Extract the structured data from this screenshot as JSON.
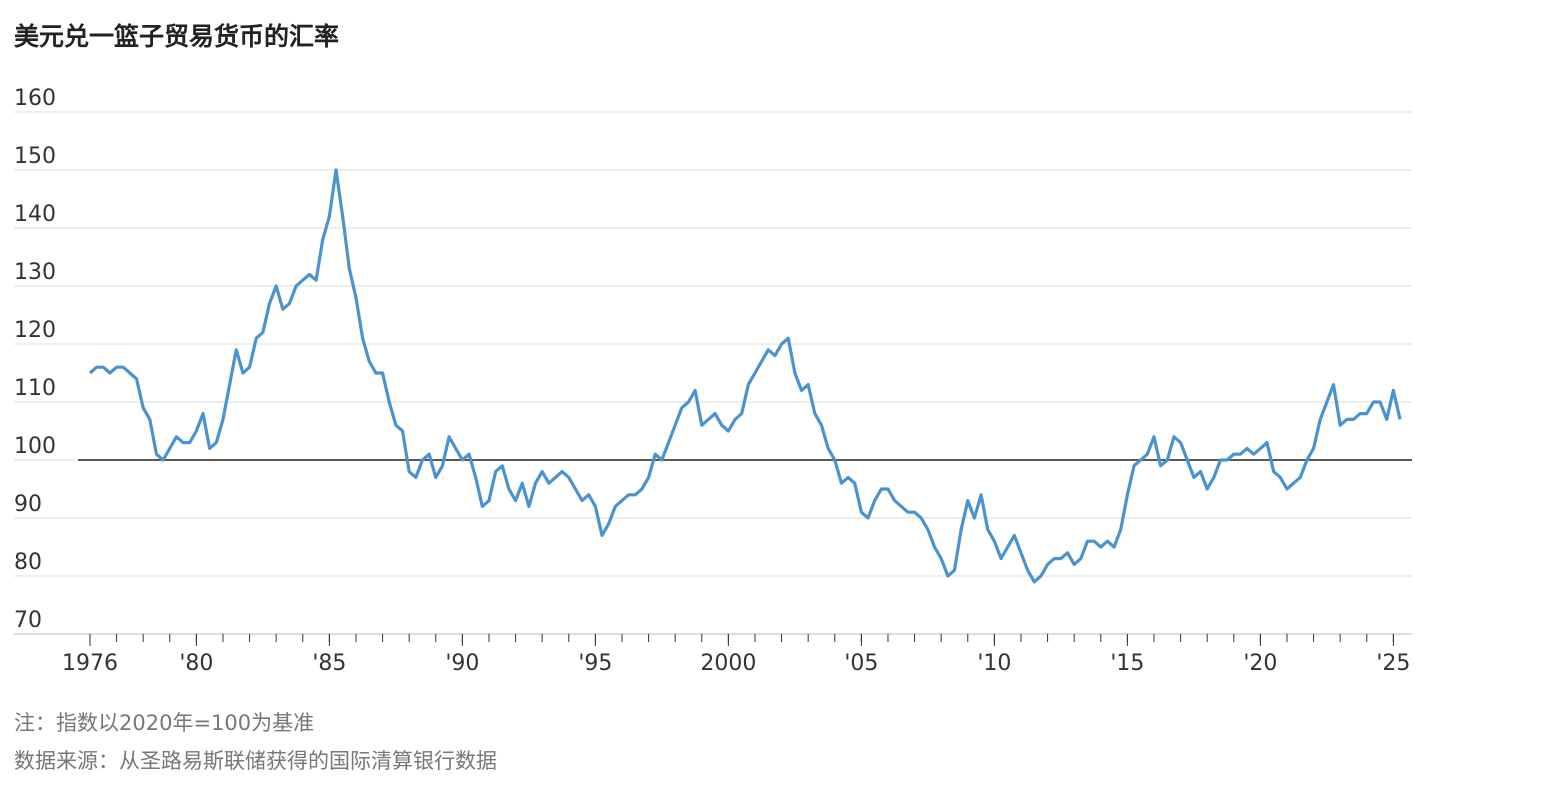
{
  "chart_data": {
    "type": "line",
    "title": "美元兑一篮子贸易货币的汇率",
    "note": "注：指数以2020年=100为基准",
    "source": "数据来源：从圣路易斯联储获得的国际清算银行数据",
    "reference_line": 100,
    "grid": true,
    "xlim": [
      1975.55,
      2025.7
    ],
    "ylim": [
      70,
      160
    ],
    "yticks": [
      70,
      80,
      90,
      100,
      110,
      120,
      130,
      140,
      150,
      160
    ],
    "xticks": [
      1976,
      {
        "value": 1980,
        "label": "'80"
      },
      {
        "value": 1985,
        "label": "'85"
      },
      {
        "value": 1990,
        "label": "'90"
      },
      {
        "value": 1995,
        "label": "'95"
      },
      2000,
      {
        "value": 2005,
        "label": "'05"
      },
      {
        "value": 2010,
        "label": "'10"
      },
      {
        "value": 2015,
        "label": "'15"
      },
      {
        "value": 2020,
        "label": "'20"
      },
      {
        "value": 2025,
        "label": "'25"
      }
    ],
    "xminorticks": [
      1976,
      1977,
      1978,
      1979,
      1980,
      1981,
      1982,
      1983,
      1984,
      1985,
      1986,
      1987,
      1988,
      1989,
      1990,
      1991,
      1992,
      1993,
      1994,
      1995,
      1996,
      1997,
      1998,
      1999,
      2000,
      2001,
      2002,
      2003,
      2004,
      2005,
      2006,
      2007,
      2008,
      2009,
      2010,
      2011,
      2012,
      2013,
      2014,
      2015,
      2016,
      2017,
      2018,
      2019,
      2020,
      2021,
      2022,
      2023,
      2024,
      2025
    ],
    "x": [
      1976,
      1976.25,
      1976.5,
      1976.75,
      1977,
      1977.25,
      1977.5,
      1977.75,
      1978,
      1978.25,
      1978.5,
      1978.75,
      1979,
      1979.25,
      1979.5,
      1979.75,
      1980,
      1980.25,
      1980.5,
      1980.75,
      1981,
      1981.25,
      1981.5,
      1981.75,
      1982,
      1982.25,
      1982.5,
      1982.75,
      1983,
      1983.25,
      1983.5,
      1983.75,
      1984,
      1984.25,
      1984.5,
      1984.75,
      1985,
      1985.25,
      1985.5,
      1985.75,
      1986,
      1986.25,
      1986.5,
      1986.75,
      1987,
      1987.25,
      1987.5,
      1987.75,
      1988,
      1988.25,
      1988.5,
      1988.75,
      1989,
      1989.25,
      1989.5,
      1989.75,
      1990,
      1990.25,
      1990.5,
      1990.75,
      1991,
      1991.25,
      1991.5,
      1991.75,
      1992,
      1992.25,
      1992.5,
      1992.75,
      1993,
      1993.25,
      1993.5,
      1993.75,
      1994,
      1994.25,
      1994.5,
      1994.75,
      1995,
      1995.25,
      1995.5,
      1995.75,
      1996,
      1996.25,
      1996.5,
      1996.75,
      1997,
      1997.25,
      1997.5,
      1997.75,
      1998,
      1998.25,
      1998.5,
      1998.75,
      1999,
      1999.25,
      1999.5,
      1999.75,
      2000,
      2000.25,
      2000.5,
      2000.75,
      2001,
      2001.25,
      2001.5,
      2001.75,
      2002,
      2002.25,
      2002.5,
      2002.75,
      2003,
      2003.25,
      2003.5,
      2003.75,
      2004,
      2004.25,
      2004.5,
      2004.75,
      2005,
      2005.25,
      2005.5,
      2005.75,
      2006,
      2006.25,
      2006.5,
      2006.75,
      2007,
      2007.25,
      2007.5,
      2007.75,
      2008,
      2008.25,
      2008.5,
      2008.75,
      2009,
      2009.25,
      2009.5,
      2009.75,
      2010,
      2010.25,
      2010.5,
      2010.75,
      2011,
      2011.25,
      2011.5,
      2011.75,
      2012,
      2012.25,
      2012.5,
      2012.75,
      2013,
      2013.25,
      2013.5,
      2013.75,
      2014,
      2014.25,
      2014.5,
      2014.75,
      2015,
      2015.25,
      2015.5,
      2015.75,
      2016,
      2016.25,
      2016.5,
      2016.75,
      2017,
      2017.25,
      2017.5,
      2017.75,
      2018,
      2018.25,
      2018.5,
      2018.75,
      2019,
      2019.25,
      2019.5,
      2019.75,
      2020,
      2020.25,
      2020.5,
      2020.75,
      2021,
      2021.25,
      2021.5,
      2021.75,
      2022,
      2022.25,
      2022.5,
      2022.75,
      2023,
      2023.25,
      2023.5,
      2023.75,
      2024,
      2024.25,
      2024.5,
      2024.75,
      2025,
      2025.25
    ],
    "series": [
      {
        "color": "#4a93cf",
        "values": [
          115,
          116,
          116,
          115,
          116,
          116,
          115,
          114,
          109,
          107,
          101,
          100,
          102,
          104,
          103,
          103,
          105,
          108,
          102,
          103,
          107,
          113,
          119,
          115,
          116,
          121,
          122,
          127,
          130,
          126,
          127,
          130,
          131,
          132,
          131,
          138,
          142,
          150,
          142,
          133,
          128,
          121,
          117,
          115,
          115,
          110,
          106,
          105,
          98,
          97,
          100,
          101,
          97,
          99,
          104,
          102,
          100,
          101,
          97,
          92,
          93,
          98,
          99,
          95,
          93,
          96,
          92,
          96,
          98,
          96,
          97,
          98,
          97,
          95,
          93,
          94,
          92,
          87,
          89,
          92,
          93,
          94,
          94,
          95,
          97,
          101,
          100,
          103,
          106,
          109,
          110,
          112,
          106,
          107,
          108,
          106,
          105,
          107,
          108,
          113,
          115,
          117,
          119,
          118,
          120,
          121,
          115,
          112,
          113,
          108,
          106,
          102,
          100,
          96,
          97,
          96,
          91,
          90,
          93,
          95,
          95,
          93,
          92,
          91,
          91,
          90,
          88,
          85,
          83,
          80,
          81,
          88,
          93,
          90,
          94,
          88,
          86,
          83,
          85,
          87,
          84,
          81,
          79,
          80,
          82,
          83,
          83,
          84,
          82,
          83,
          86,
          86,
          85,
          86,
          85,
          88,
          94,
          99,
          100,
          101,
          104,
          99,
          100,
          104,
          103,
          100,
          97,
          98,
          95,
          97,
          100,
          100,
          101,
          101,
          102,
          101,
          102,
          103,
          98,
          97,
          95,
          96,
          97,
          100,
          102,
          107,
          110,
          113,
          106,
          107,
          107,
          108,
          108,
          110,
          110,
          107,
          112,
          107
        ]
      }
    ]
  }
}
